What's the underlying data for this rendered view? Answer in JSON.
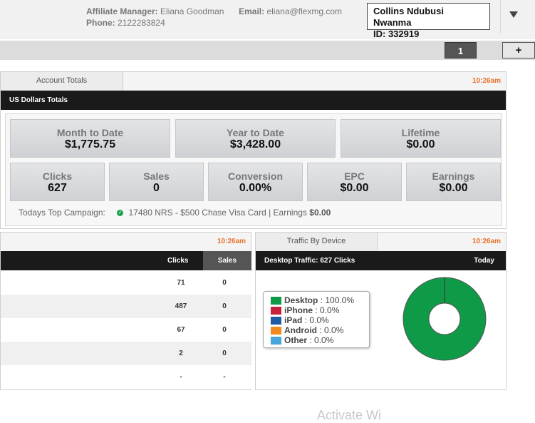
{
  "header": {
    "manager_label": "Affiliate Manager:",
    "manager_name": "Eliana Goodman",
    "email_label": "Email:",
    "email": "eliana@flexmg.com",
    "phone_label": "Phone:",
    "phone": "2122283824",
    "user_name": "Collins Ndubusi Nwanma",
    "user_id": "ID: 332919"
  },
  "toolbar": {
    "page_label": "1",
    "add_label": "+"
  },
  "account_totals": {
    "tab": "Account Totals",
    "time": "10:26am",
    "bar_title": "US Dollars Totals",
    "tiles_top": [
      {
        "label": "Month to Date",
        "value": "$1,775.75"
      },
      {
        "label": "Year to Date",
        "value": "$3,428.00"
      },
      {
        "label": "Lifetime",
        "value": "$0.00"
      }
    ],
    "tiles_bottom": [
      {
        "label": "Clicks",
        "value": "627"
      },
      {
        "label": "Sales",
        "value": "0"
      },
      {
        "label": "Conversion",
        "value": "0.00%"
      },
      {
        "label": "EPC",
        "value": "$0.00"
      },
      {
        "label": "Earnings",
        "value": "$0.00"
      }
    ],
    "top_campaign_label": "Todays Top Campaign:",
    "top_campaign_text": "17480 NRS - $500 Chase Visa Card | Earnings",
    "top_campaign_earnings": "$0.00"
  },
  "left_panel": {
    "time": "10:26am",
    "col_clicks": "Clicks",
    "col_sales": "Sales",
    "rows": [
      {
        "clicks": "71",
        "sales": "0"
      },
      {
        "clicks": "487",
        "sales": "0"
      },
      {
        "clicks": "67",
        "sales": "0"
      },
      {
        "clicks": "2",
        "sales": "0"
      },
      {
        "clicks": "-",
        "sales": "-"
      }
    ]
  },
  "traffic": {
    "tab": "Traffic By Device",
    "time": "10:26am",
    "bar_title": "Desktop Traffic: 627 Clicks",
    "bar_right": "Today",
    "legend": [
      {
        "name": "Desktop",
        "value": ": 100.0%",
        "color": "#0f9a48"
      },
      {
        "name": "iPhone",
        "value": ": 0.0%",
        "color": "#c8203a"
      },
      {
        "name": "iPad",
        "value": ": 0.0%",
        "color": "#1f5aa6"
      },
      {
        "name": "Android",
        "value": ": 0.0%",
        "color": "#f28a1e"
      },
      {
        "name": "Other",
        "value": ": 0.0%",
        "color": "#46a6dc"
      }
    ],
    "chart_data": {
      "type": "pie",
      "categories": [
        "Desktop",
        "iPhone",
        "iPad",
        "Android",
        "Other"
      ],
      "values": [
        100.0,
        0.0,
        0.0,
        0.0,
        0.0
      ]
    }
  },
  "watermark": "Activate Wi"
}
